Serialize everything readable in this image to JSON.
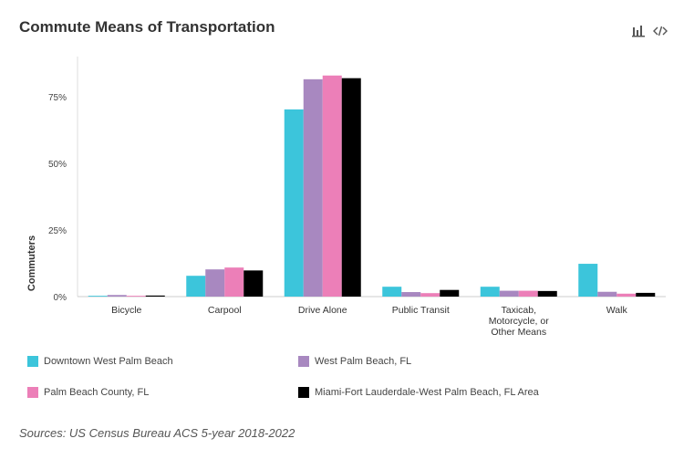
{
  "header": {
    "title": "Commute Means of Transportation",
    "icons": [
      "bar-chart-icon",
      "code-icon"
    ]
  },
  "chart_data": {
    "type": "bar",
    "title": "Commute Means of Transportation",
    "ylabel": "Commuters",
    "xlabel": "",
    "ylim": [
      0,
      90
    ],
    "yticks": [
      0,
      25,
      50,
      75
    ],
    "ytick_labels": [
      "0%",
      "25%",
      "50%",
      "75%"
    ],
    "grid": false,
    "legend_position": "bottom",
    "categories": [
      [
        "Bicycle"
      ],
      [
        "Carpool"
      ],
      [
        "Drive Alone"
      ],
      [
        "Public Transit"
      ],
      [
        "Taxicab,",
        "Motorcycle, or",
        "Other Means"
      ],
      [
        "Walk"
      ]
    ],
    "series": [
      {
        "name": "Downtown West Palm Beach",
        "color": "#3cc5db",
        "values": [
          0.3,
          7.8,
          70.2,
          3.7,
          3.7,
          12.3
        ]
      },
      {
        "name": "West Palm Beach, FL",
        "color": "#a888c0",
        "values": [
          0.6,
          10.2,
          81.5,
          1.7,
          2.2,
          1.8
        ]
      },
      {
        "name": "Palm Beach County, FL",
        "color": "#ec7fb8",
        "values": [
          0.3,
          10.9,
          82.9,
          1.3,
          2.2,
          1.1
        ]
      },
      {
        "name": "Miami-Fort Lauderdale-West Palm Beach, FL Area",
        "color": "#000000",
        "values": [
          0.4,
          9.8,
          81.9,
          2.5,
          2.1,
          1.4
        ]
      }
    ]
  },
  "source": "Sources: US Census Bureau ACS 5-year 2018-2022"
}
